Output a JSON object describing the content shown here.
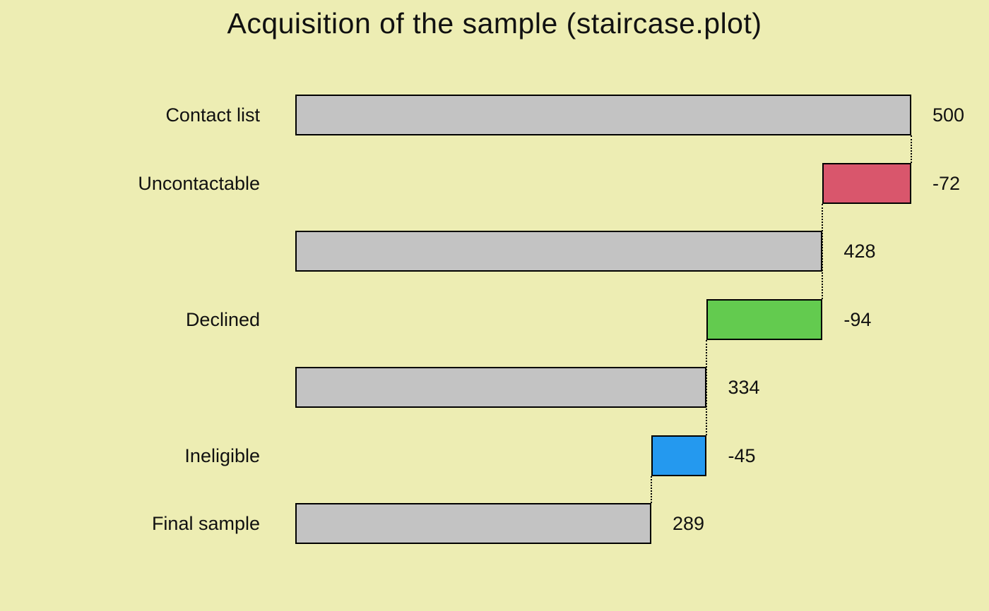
{
  "chart_data": {
    "type": "waterfall",
    "title": "Acquisition of the sample (staircase.plot)",
    "xlabel": "",
    "ylabel": "",
    "xlim": [
      0,
      500
    ],
    "grid": false,
    "legend": "none",
    "background": "#ededb3",
    "bar_border": "#000000",
    "rows": [
      {
        "label": "Contact list",
        "value": 500,
        "display": "500",
        "start": 0,
        "end": 500,
        "color": "#c3c3c3",
        "kind": "total"
      },
      {
        "label": "Uncontactable",
        "value": -72,
        "display": "-72",
        "start": 428,
        "end": 500,
        "color": "#d9566c",
        "kind": "decrease"
      },
      {
        "label": "",
        "value": 428,
        "display": "428",
        "start": 0,
        "end": 428,
        "color": "#c3c3c3",
        "kind": "subtotal"
      },
      {
        "label": "Declined",
        "value": -94,
        "display": "-94",
        "start": 334,
        "end": 428,
        "color": "#63cb4f",
        "kind": "decrease"
      },
      {
        "label": "",
        "value": 334,
        "display": "334",
        "start": 0,
        "end": 334,
        "color": "#c3c3c3",
        "kind": "subtotal"
      },
      {
        "label": "Ineligible",
        "value": -45,
        "display": "-45",
        "start": 289,
        "end": 334,
        "color": "#2499ef",
        "kind": "decrease"
      },
      {
        "label": "Final sample",
        "value": 289,
        "display": "289",
        "start": 0,
        "end": 289,
        "color": "#c3c3c3",
        "kind": "total"
      }
    ],
    "connectors": [
      {
        "x": 500,
        "from_row": 0,
        "to_row": 1
      },
      {
        "x": 428,
        "from_row": 1,
        "to_row": 3
      },
      {
        "x": 334,
        "from_row": 3,
        "to_row": 5
      },
      {
        "x": 289,
        "from_row": 5,
        "to_row": 6
      }
    ]
  }
}
